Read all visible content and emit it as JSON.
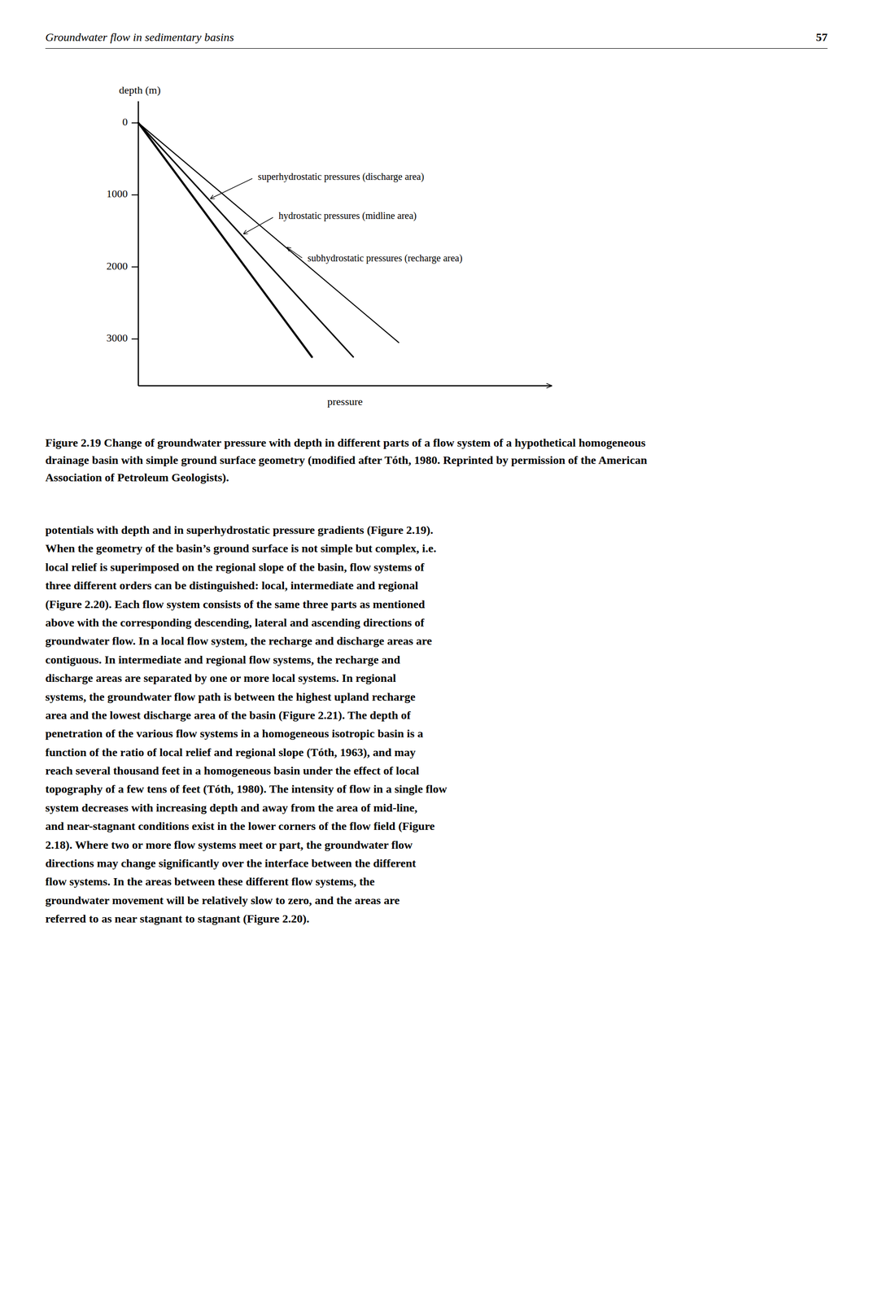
{
  "chart_data": {
    "type": "line",
    "xlabel": "pressure",
    "ylabel": "depth (m)",
    "xlim": [
      -0.05,
      1.0
    ],
    "ylim": [
      3650,
      -300
    ],
    "yticks": [
      0,
      1000,
      2000,
      3000
    ],
    "tick_labels": "y",
    "series": [
      {
        "color": "#000000",
        "x": [
          0,
          0.42
        ],
        "values": [
          0,
          3250
        ]
      },
      {
        "color": "#000000",
        "x": [
          0,
          0.52
        ],
        "values": [
          0,
          3250
        ]
      },
      {
        "color": "#000000",
        "x": [
          0,
          0.63
        ],
        "values": [
          0,
          3050
        ]
      }
    ],
    "annotations": [
      {
        "text": "superhydrostatic pressures (discharge area)",
        "xy": [
          0.175,
          1050
        ],
        "xytext": [
          0.28,
          760
        ]
      },
      {
        "text": "hydrostatic pressures (midline area)",
        "xy": [
          0.255,
          1540
        ],
        "xytext": [
          0.33,
          1300
        ]
      },
      {
        "text": "subhydrostatic pressures (recharge area)",
        "xy": [
          0.36,
          1730
        ],
        "xytext": [
          0.4,
          1890
        ]
      }
    ]
  },
  "page": {
    "header_left": "Groundwater flow in sedimentary basins",
    "header_right": "57",
    "caption": "Figure 2.19  Change of groundwater pressure with depth in different parts of a flow system of a hypothetical homogeneous drainage basin with simple ground surface geometry (modified after Tóth, 1980. Reprinted by permission of the American Association of Petroleum Geologists).",
    "body_text_lines": [
      "potentials with depth and in superhydrostatic pressure gradients (Figure 2.19).",
      "When the geometry of the basin’s ground surface is not simple but complex, i.e.",
      "local relief is superimposed on the regional slope of the basin, flow systems of",
      "three different orders can be distinguished: local, intermediate and regional",
      "(Figure 2.20). Each flow system consists of the same three parts as mentioned",
      "above with the corresponding descending, lateral and ascending directions of",
      "groundwater flow. In a local flow system, the recharge and discharge areas are",
      "contiguous. In intermediate and regional flow systems, the recharge and",
      "discharge areas are separated by one or more local systems. In regional",
      "systems, the groundwater flow path is between the highest upland recharge",
      "area and the lowest discharge area of the basin (Figure 2.21). The depth of",
      "penetration of the various flow systems in a homogeneous isotropic basin is a",
      "function of the ratio of local relief and regional slope (Tóth, 1963), and may",
      "reach several thousand feet in a homogeneous basin under the effect of local",
      "topography of a few tens of feet (Tóth, 1980). The intensity of flow in a single flow",
      "system decreases with increasing depth and away from the area of mid-line,",
      "and near-stagnant conditions exist in the lower corners of the flow field (Figure",
      "2.18). Where two or more flow systems meet or part, the groundwater flow",
      "directions may change significantly over the interface between the different",
      "flow systems. In the areas between these different flow systems, the",
      "groundwater movement will be relatively slow to zero, and the areas are",
      "referred to as near stagnant to stagnant (Figure 2.20)."
    ]
  }
}
